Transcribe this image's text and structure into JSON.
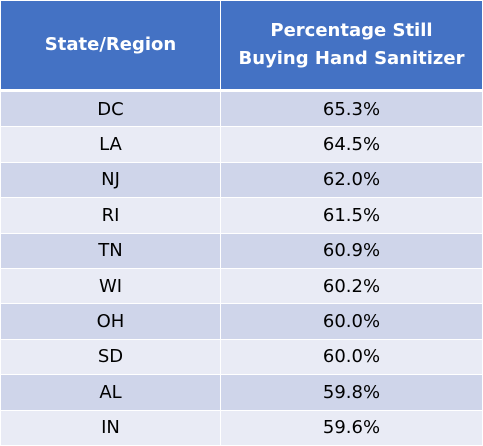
{
  "table": {
    "headers": [
      "State/Region",
      "Percentage Still Buying Hand Sanitizer"
    ],
    "rows": [
      [
        "DC",
        "65.3%"
      ],
      [
        "LA",
        "64.5%"
      ],
      [
        "NJ",
        "62.0%"
      ],
      [
        "RI",
        "61.5%"
      ],
      [
        "TN",
        "60.9%"
      ],
      [
        "WI",
        "60.2%"
      ],
      [
        "OH",
        "60.0%"
      ],
      [
        "SD",
        "60.0%"
      ],
      [
        "AL",
        "59.8%"
      ],
      [
        "IN",
        "59.6%"
      ]
    ]
  }
}
